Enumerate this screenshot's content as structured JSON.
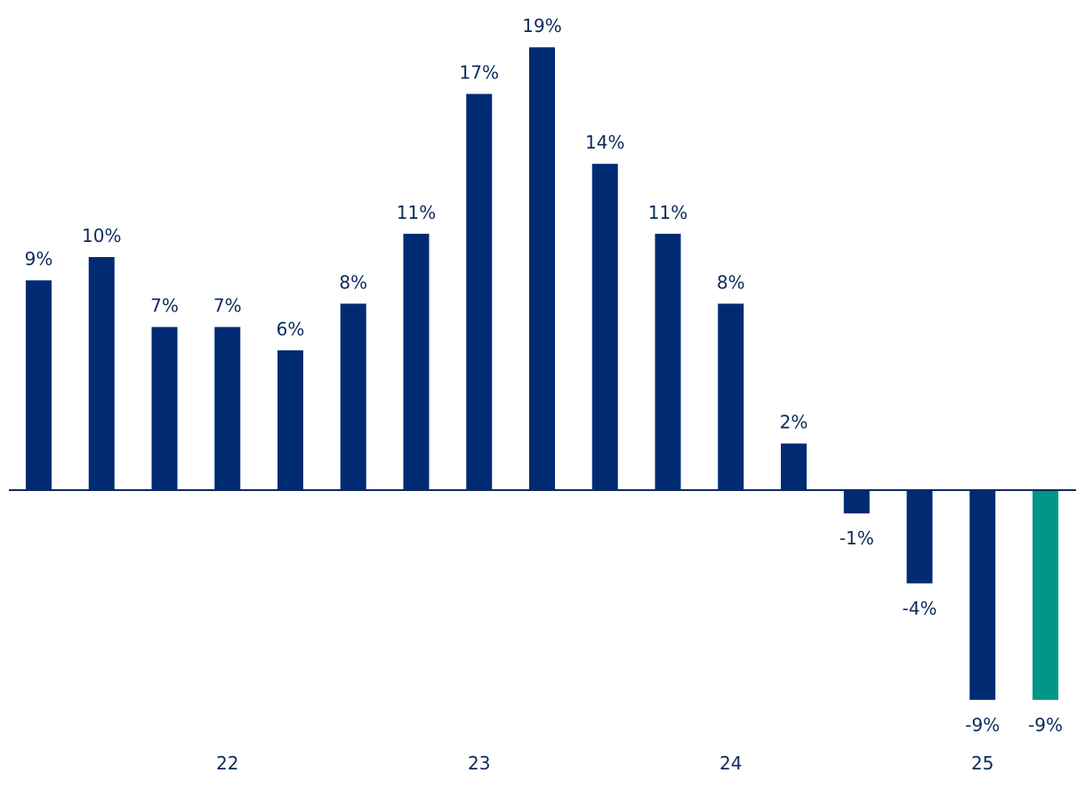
{
  "chart_data": {
    "type": "bar",
    "values": [
      9,
      10,
      7,
      7,
      6,
      8,
      11,
      17,
      19,
      14,
      11,
      8,
      2,
      -1,
      -4,
      -9,
      -9
    ],
    "labels": [
      "9%",
      "10%",
      "7%",
      "7%",
      "6%",
      "8%",
      "11%",
      "17%",
      "19%",
      "14%",
      "11%",
      "8%",
      "2%",
      "-1%",
      "-4%",
      "-9%",
      "-9%"
    ],
    "x_ticks": [
      {
        "label": "22",
        "bar_index": 3
      },
      {
        "label": "23",
        "bar_index": 7
      },
      {
        "label": "24",
        "bar_index": 11
      },
      {
        "label": "25",
        "bar_index": 15
      }
    ],
    "highlight_index": 16,
    "colors": {
      "bar": "#002b73",
      "highlight": "#009688",
      "axis": "#0d2a5c",
      "text": "#0d2a5c"
    },
    "ylim": [
      -9,
      19
    ],
    "grid": false,
    "title": "",
    "xlabel": "",
    "ylabel": ""
  }
}
